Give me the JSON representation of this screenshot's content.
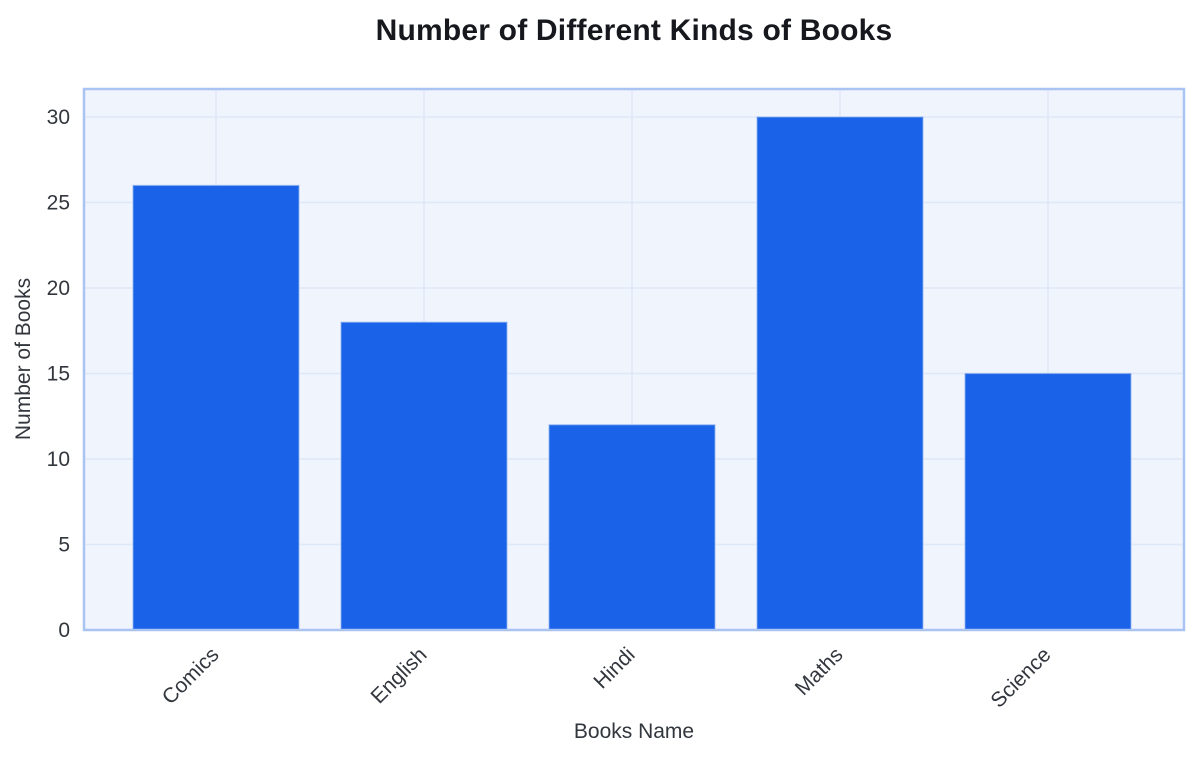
{
  "chart_data": {
    "type": "bar",
    "title": "Number of Different Kinds of Books",
    "xlabel": "Books Name",
    "ylabel": "Number of Books",
    "categories": [
      "Comics",
      "English",
      "Hindi",
      "Maths",
      "Science"
    ],
    "values": [
      26,
      18,
      12,
      30,
      15
    ],
    "yticks": [
      0,
      5,
      10,
      15,
      20,
      25,
      30
    ],
    "ylim": [
      0,
      31.7
    ],
    "grid": true,
    "legend_position": "none",
    "x_tick_rotation_deg": 45,
    "colors": {
      "bar": "#1a63e8",
      "bar_edge": "#8fb3ee",
      "plot_background": "#eff4fd",
      "gridline": "#dfe8f7",
      "plot_border": "#a9c4f2",
      "title_text": "#16181d",
      "axis_text": "#32363d",
      "page_background": "#ffffff"
    }
  }
}
